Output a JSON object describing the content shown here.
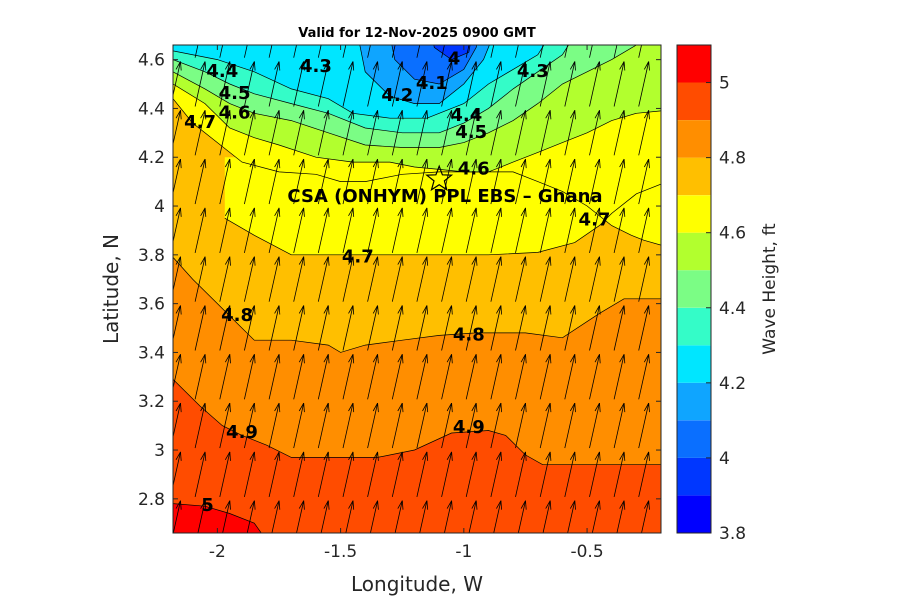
{
  "chart_data": {
    "type": "heatmap",
    "title": "Valid for 12-Nov-2025 0900 GMT",
    "xlabel": "Longitude, W",
    "ylabel": "Latitude, N",
    "xlim": [
      -2.18,
      -0.2
    ],
    "ylim": [
      2.66,
      4.66
    ],
    "x_ticks": [
      -2,
      -1.5,
      -1,
      -0.5
    ],
    "x_tick_labels": [
      "-2",
      "-1.5",
      "-1",
      "-0.5"
    ],
    "y_ticks": [
      2.8,
      3.0,
      3.2,
      3.4,
      3.6,
      3.8,
      4.0,
      4.2,
      4.4,
      4.6
    ],
    "y_tick_labels": [
      "2.8",
      "3",
      "3.2",
      "3.4",
      "3.6",
      "3.8",
      "4",
      "4.2",
      "4.4",
      "4.6"
    ],
    "colorbar": {
      "label": "Wave Height, ft",
      "range": [
        3.8,
        5.1
      ],
      "ticks": [
        3.8,
        4.0,
        4.2,
        4.4,
        4.6,
        4.8,
        5.0
      ],
      "tick_labels": [
        "3.8",
        "4",
        "4.2",
        "4.4",
        "4.6",
        "4.8",
        "5"
      ],
      "levels": [
        3.8,
        3.9,
        4.0,
        4.1,
        4.2,
        4.3,
        4.4,
        4.5,
        4.6,
        4.7,
        4.8,
        4.9,
        5.0,
        5.1
      ],
      "colors": [
        "#0000ff",
        "#0037ff",
        "#0a6fff",
        "#0fa5ff",
        "#00e6ff",
        "#34fcc8",
        "#7bfd85",
        "#b2ff2e",
        "#ffff00",
        "#ffbf00",
        "#ff8e00",
        "#ff4c00",
        "#ff0000"
      ]
    },
    "contour_labels": [
      {
        "text": "4.4",
        "lon": -1.98,
        "lat": 4.55
      },
      {
        "text": "4.3",
        "lon": -1.6,
        "lat": 4.57
      },
      {
        "text": "4.5",
        "lon": -1.93,
        "lat": 4.46
      },
      {
        "text": "4.6",
        "lon": -1.93,
        "lat": 4.38
      },
      {
        "text": "4.7",
        "lon": -2.07,
        "lat": 4.34
      },
      {
        "text": "4.2",
        "lon": -1.27,
        "lat": 4.45
      },
      {
        "text": "4.1",
        "lon": -1.13,
        "lat": 4.5
      },
      {
        "text": "4",
        "lon": -1.04,
        "lat": 4.6
      },
      {
        "text": "4.3",
        "lon": -0.72,
        "lat": 4.55
      },
      {
        "text": "4.4",
        "lon": -0.99,
        "lat": 4.37
      },
      {
        "text": "4.5",
        "lon": -0.97,
        "lat": 4.3
      },
      {
        "text": "4.6",
        "lon": -0.96,
        "lat": 4.15
      },
      {
        "text": "4.7",
        "lon": -0.47,
        "lat": 3.94
      },
      {
        "text": "4.7",
        "lon": -1.43,
        "lat": 3.79
      },
      {
        "text": "4.8",
        "lon": -1.92,
        "lat": 3.55
      },
      {
        "text": "4.8",
        "lon": -0.98,
        "lat": 3.47
      },
      {
        "text": "4.9",
        "lon": -1.9,
        "lat": 3.07
      },
      {
        "text": "4.9",
        "lon": -0.98,
        "lat": 3.09
      },
      {
        "text": "5",
        "lon": -2.04,
        "lat": 2.77
      }
    ],
    "site": {
      "label": "CSA (ONHYM) PPL EBS  – Ghana",
      "lon": -1.1,
      "lat": 4.11
    },
    "wave_direction": "toward north-northeast",
    "arrow_grid": {
      "lon_start": -2.17,
      "lon_step": 0.1,
      "lat_start": 2.7,
      "lat_step": 0.2
    }
  }
}
